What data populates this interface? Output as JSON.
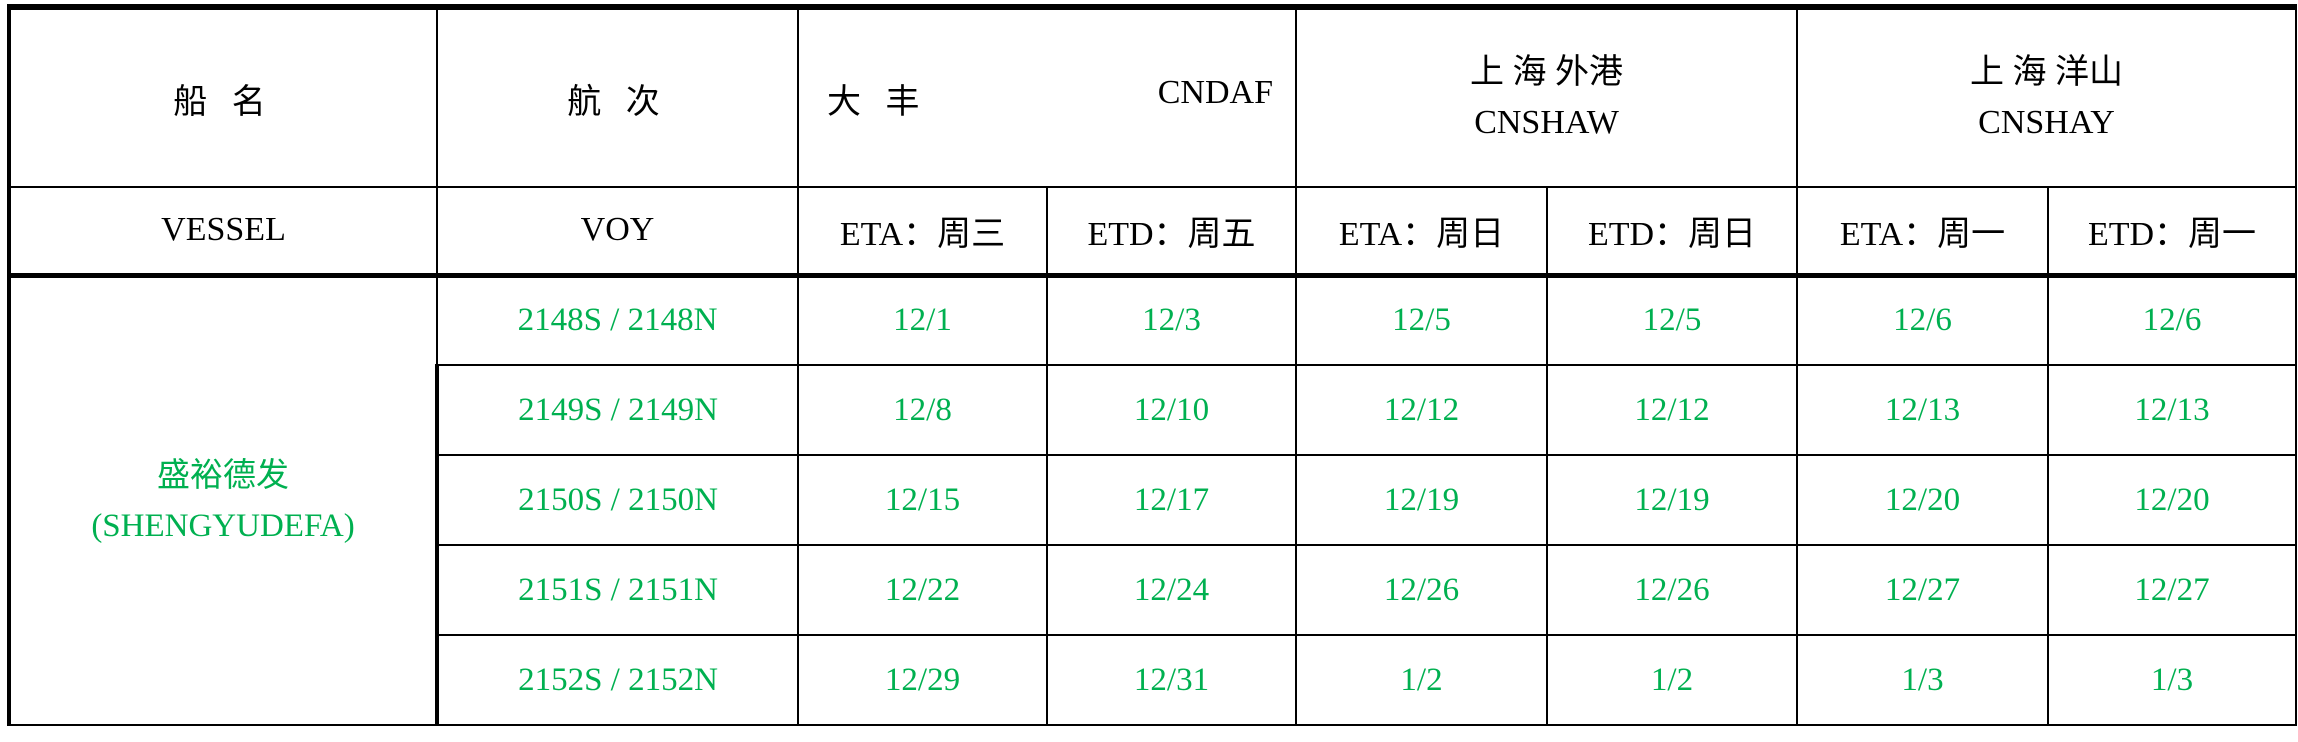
{
  "header": {
    "vessel_cn": "船 名",
    "voyage_cn": "航 次",
    "dafeng_cn": "大 丰",
    "dafeng_code": "CNDAF",
    "waigang_cn": "上 海 外港",
    "waigang_code": "CNSHAW",
    "yangshan_cn": "上 海 洋山",
    "yangshan_code": "CNSHAY",
    "vessel_en": "VESSEL",
    "voyage_en": "VOY",
    "sub": [
      "ETA：周三",
      "ETD：周五",
      "ETA：周日",
      "ETD：周日",
      "ETA：周一",
      "ETD：周一"
    ]
  },
  "vessel": {
    "name_cn": "盛裕德发",
    "name_en": "(SHENGYUDEFA)"
  },
  "rows": [
    {
      "voy": "2148S / 2148N",
      "dates": [
        "12/1",
        "12/3",
        "12/5",
        "12/5",
        "12/6",
        "12/6"
      ]
    },
    {
      "voy": "2149S / 2149N",
      "dates": [
        "12/8",
        "12/10",
        "12/12",
        "12/12",
        "12/13",
        "12/13"
      ]
    },
    {
      "voy": "2150S / 2150N",
      "dates": [
        "12/15",
        "12/17",
        "12/19",
        "12/19",
        "12/20",
        "12/20"
      ]
    },
    {
      "voy": "2151S / 2151N",
      "dates": [
        "12/22",
        "12/24",
        "12/26",
        "12/26",
        "12/27",
        "12/27"
      ]
    },
    {
      "voy": "2152S / 2152N",
      "dates": [
        "12/29",
        "12/31",
        "1/2",
        "1/2",
        "1/3",
        "1/3"
      ]
    }
  ],
  "colors": {
    "data_text": "#00b050",
    "border": "#000000"
  }
}
